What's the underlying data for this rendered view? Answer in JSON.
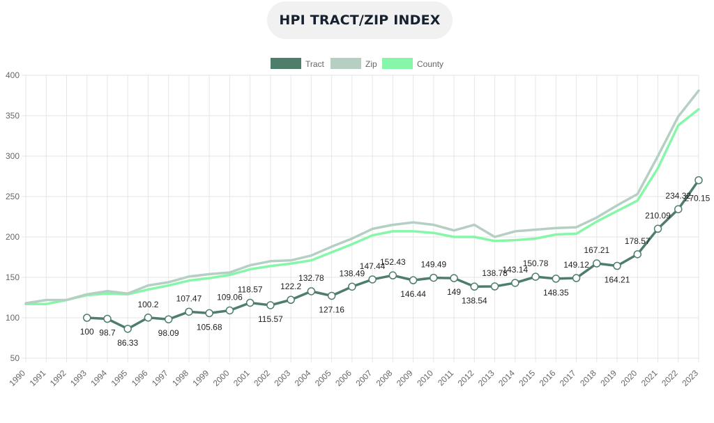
{
  "header": {
    "title": "HPI TRACT/ZIP INDEX"
  },
  "chart_data": {
    "type": "line",
    "title": "HPI TRACT/ZIP INDEX",
    "xlabel": "",
    "ylabel": "",
    "ylim": [
      50,
      400
    ],
    "yticks": [
      50,
      100,
      150,
      200,
      250,
      300,
      350,
      400
    ],
    "grid": true,
    "legend_position": "top-center",
    "categories": [
      "1990",
      "1991",
      "1992",
      "1993",
      "1994",
      "1995",
      "1996",
      "1997",
      "1998",
      "1999",
      "2000",
      "2001",
      "2002",
      "2003",
      "2004",
      "2005",
      "2006",
      "2007",
      "2008",
      "2009",
      "2010",
      "2011",
      "2012",
      "2013",
      "2014",
      "2015",
      "2016",
      "2017",
      "2018",
      "2019",
      "2020",
      "2021",
      "2022",
      "2023"
    ],
    "series": [
      {
        "name": "Tract",
        "color": "#4e7d6a",
        "markers": true,
        "data_labels": true,
        "values": [
          null,
          null,
          null,
          100,
          98.7,
          86.33,
          100.2,
          98.09,
          107.47,
          105.68,
          109.06,
          118.57,
          115.57,
          122.2,
          132.78,
          127.16,
          138.49,
          147.44,
          152.43,
          146.44,
          149.49,
          149,
          138.54,
          138.78,
          143.14,
          150.78,
          148.35,
          149.12,
          167.21,
          164.21,
          178.57,
          210.09,
          234.32,
          270.15
        ]
      },
      {
        "name": "Zip",
        "color": "#b6cfc3",
        "markers": false,
        "data_labels": false,
        "values": [
          118,
          122,
          122,
          129,
          133,
          130,
          140,
          144,
          151,
          154,
          156,
          165,
          170,
          171,
          177,
          188,
          198,
          210,
          215,
          218,
          215,
          208,
          215,
          200,
          207,
          209,
          211,
          212,
          224,
          239,
          253,
          300,
          349,
          381
        ]
      },
      {
        "name": "County",
        "color": "#86f7a8",
        "markers": false,
        "data_labels": false,
        "values": [
          117,
          117,
          122,
          128,
          130,
          129,
          135,
          140,
          146,
          149,
          153,
          160,
          164,
          167,
          171,
          181,
          191,
          202,
          207,
          207,
          205,
          200,
          200,
          195,
          196,
          198,
          203,
          204,
          219,
          232,
          245,
          285,
          338,
          358
        ]
      }
    ]
  }
}
